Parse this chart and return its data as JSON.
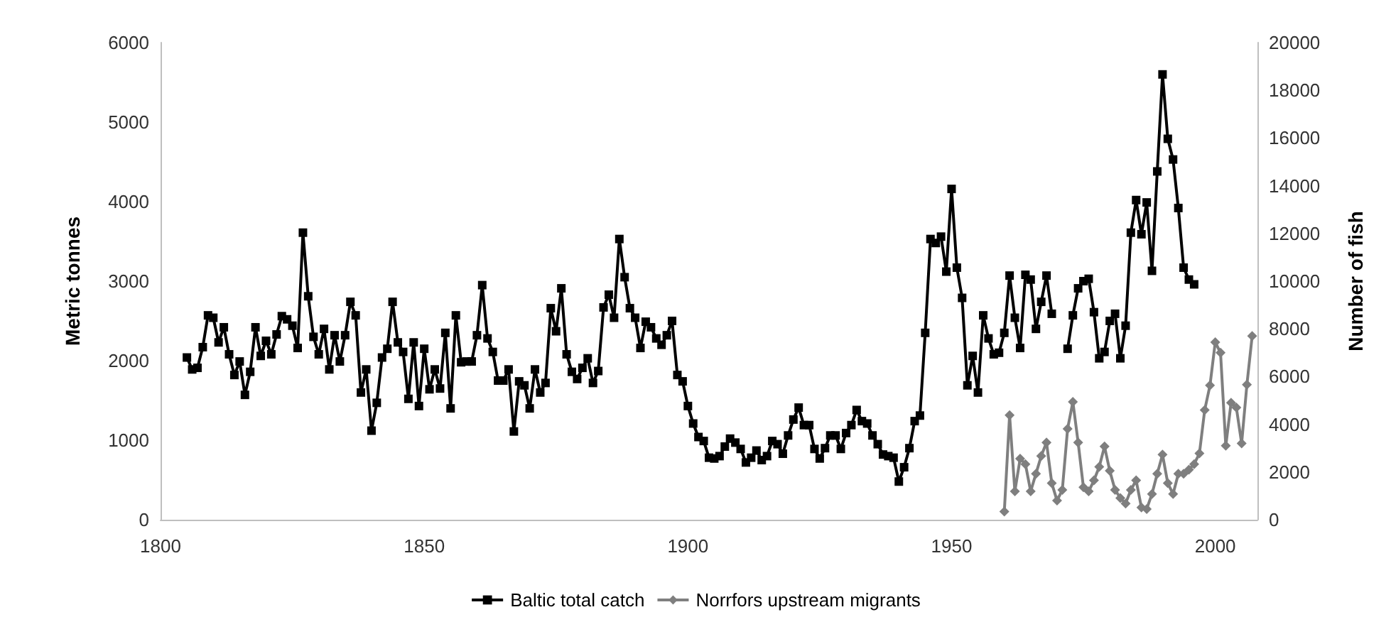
{
  "chart_data": {
    "type": "line",
    "ylabel": "Metric tonnes",
    "y2label": "Number of fish",
    "xlim": [
      1800,
      2008
    ],
    "xticks": [
      1800,
      1850,
      1900,
      1950,
      2000
    ],
    "ylim": [
      0,
      6000
    ],
    "yticks": [
      0,
      1000,
      2000,
      3000,
      4000,
      5000,
      6000
    ],
    "y2lim": [
      0,
      20000
    ],
    "y2ticks": [
      0,
      2000,
      4000,
      6000,
      8000,
      10000,
      12000,
      14000,
      16000,
      18000,
      20000
    ],
    "grid": false,
    "legend": "bottom",
    "line_style": "solid",
    "series": [
      {
        "name": "Baltic total catch",
        "color": "#000000",
        "marker": "square",
        "x": [
          1805,
          1806,
          1807,
          1808,
          1809,
          1810,
          1811,
          1812,
          1813,
          1814,
          1815,
          1816,
          1817,
          1818,
          1819,
          1820,
          1821,
          1822,
          1823,
          1824,
          1825,
          1826,
          1827,
          1828,
          1829,
          1830,
          1831,
          1832,
          1833,
          1834,
          1835,
          1836,
          1837,
          1838,
          1839,
          1840,
          1841,
          1842,
          1843,
          1844,
          1845,
          1846,
          1847,
          1848,
          1849,
          1850,
          1851,
          1852,
          1853,
          1854,
          1855,
          1856,
          1857,
          1858,
          1859,
          1860,
          1861,
          1862,
          1863,
          1864,
          1865,
          1866,
          1867,
          1868,
          1869,
          1870,
          1871,
          1872,
          1873,
          1874,
          1875,
          1876,
          1877,
          1878,
          1879,
          1880,
          1881,
          1882,
          1883,
          1884,
          1885,
          1886,
          1887,
          1888,
          1889,
          1890,
          1891,
          1892,
          1893,
          1894,
          1895,
          1896,
          1897,
          1898,
          1899,
          1900,
          1901,
          1902,
          1903,
          1904,
          1905,
          1906,
          1907,
          1908,
          1909,
          1910,
          1911,
          1912,
          1913,
          1914,
          1915,
          1916,
          1917,
          1918,
          1919,
          1920,
          1921,
          1922,
          1923,
          1924,
          1925,
          1926,
          1927,
          1928,
          1929,
          1930,
          1931,
          1932,
          1933,
          1934,
          1935,
          1936,
          1937,
          1938,
          1939,
          1940,
          1941,
          1942,
          1943,
          1944,
          1945,
          1946,
          1947,
          1948,
          1949,
          1950,
          1951,
          1952,
          1953,
          1954,
          1955,
          1956,
          1957,
          1958,
          1959,
          1960,
          1961,
          1962,
          1963,
          1964,
          1965,
          1966,
          1967,
          1968,
          1969,
          1970,
          1971,
          1972,
          1973,
          1974,
          1975,
          1976,
          1977,
          1978,
          1979,
          1980,
          1981,
          1982,
          1983,
          1984,
          1985,
          1986,
          1987,
          1988,
          1989,
          1990,
          1991,
          1992,
          1993,
          1994,
          1995,
          1996
        ],
        "values": [
          2040,
          1890,
          1910,
          2170,
          2570,
          2540,
          2230,
          2420,
          2080,
          1820,
          1990,
          1570,
          1860,
          2420,
          2060,
          2250,
          2080,
          2330,
          2560,
          2520,
          2440,
          2160,
          3610,
          2810,
          2300,
          2080,
          2400,
          1890,
          2320,
          1990,
          2320,
          2740,
          2570,
          1600,
          1890,
          1120,
          1470,
          2040,
          2150,
          2740,
          2230,
          2110,
          1520,
          2230,
          1430,
          2150,
          1640,
          1890,
          1650,
          2350,
          1400,
          2570,
          1980,
          1990,
          1990,
          2320,
          2950,
          2280,
          2110,
          1750,
          1750,
          1890,
          1110,
          1740,
          1690,
          1400,
          1890,
          1600,
          1720,
          2660,
          2370,
          2910,
          2080,
          1860,
          1770,
          1910,
          2030,
          1720,
          1870,
          2670,
          2830,
          2540,
          3530,
          3050,
          2660,
          2540,
          2160,
          2490,
          2420,
          2280,
          2200,
          2320,
          2500,
          1820,
          1740,
          1430,
          1210,
          1040,
          990,
          780,
          770,
          800,
          920,
          1020,
          970,
          890,
          720,
          780,
          870,
          750,
          800,
          990,
          950,
          830,
          1060,
          1260,
          1410,
          1190,
          1190,
          890,
          770,
          900,
          1060,
          1060,
          890,
          1090,
          1190,
          1380,
          1240,
          1210,
          1060,
          950,
          820,
          800,
          780,
          480,
          660,
          900,
          1240,
          1310,
          2350,
          3530,
          3480,
          3560,
          3120,
          4160,
          3170,
          2790,
          1690,
          2060,
          1600,
          2570,
          2280,
          2080,
          2100,
          2350,
          3070,
          2540,
          2160,
          3080,
          3020,
          2400,
          2740,
          3070,
          2590,
          null,
          null,
          2150,
          2570,
          2910,
          3000,
          3030,
          2610,
          2030,
          2110,
          2500,
          2590,
          2030,
          2440,
          3610,
          4020,
          3590,
          3990,
          3130,
          4380,
          5600,
          4790,
          4530,
          3920,
          3170,
          3020,
          2960
        ]
      },
      {
        "name": "Norrfors upstream migrants",
        "color": "#7f7f7f",
        "marker": "diamond",
        "axis": "y2",
        "x": [
          1960,
          1961,
          1962,
          1963,
          1964,
          1965,
          1966,
          1967,
          1968,
          1969,
          1970,
          1971,
          1972,
          1973,
          1974,
          1975,
          1976,
          1977,
          1978,
          1979,
          1980,
          1981,
          1982,
          1983,
          1984,
          1985,
          1986,
          1987,
          1988,
          1989,
          1990,
          1991,
          1992,
          1993,
          1994,
          1995,
          1996,
          1997,
          1998,
          1999,
          2000,
          2001,
          2002,
          2003,
          2004,
          2005,
          2006,
          2007
        ],
        "values": [
          340,
          4380,
          1190,
          2560,
          2330,
          1190,
          1930,
          2670,
          3240,
          1530,
          800,
          1250,
          3810,
          4940,
          3240,
          1360,
          1190,
          1650,
          2220,
          3070,
          2050,
          1250,
          910,
          680,
          1250,
          1650,
          510,
          450,
          1080,
          1930,
          2730,
          1530,
          1080,
          1930,
          1930,
          2100,
          2330,
          2780,
          4600,
          5630,
          7440,
          7000,
          3100,
          4900,
          4700,
          3200,
          5660,
          7700
        ]
      }
    ]
  }
}
